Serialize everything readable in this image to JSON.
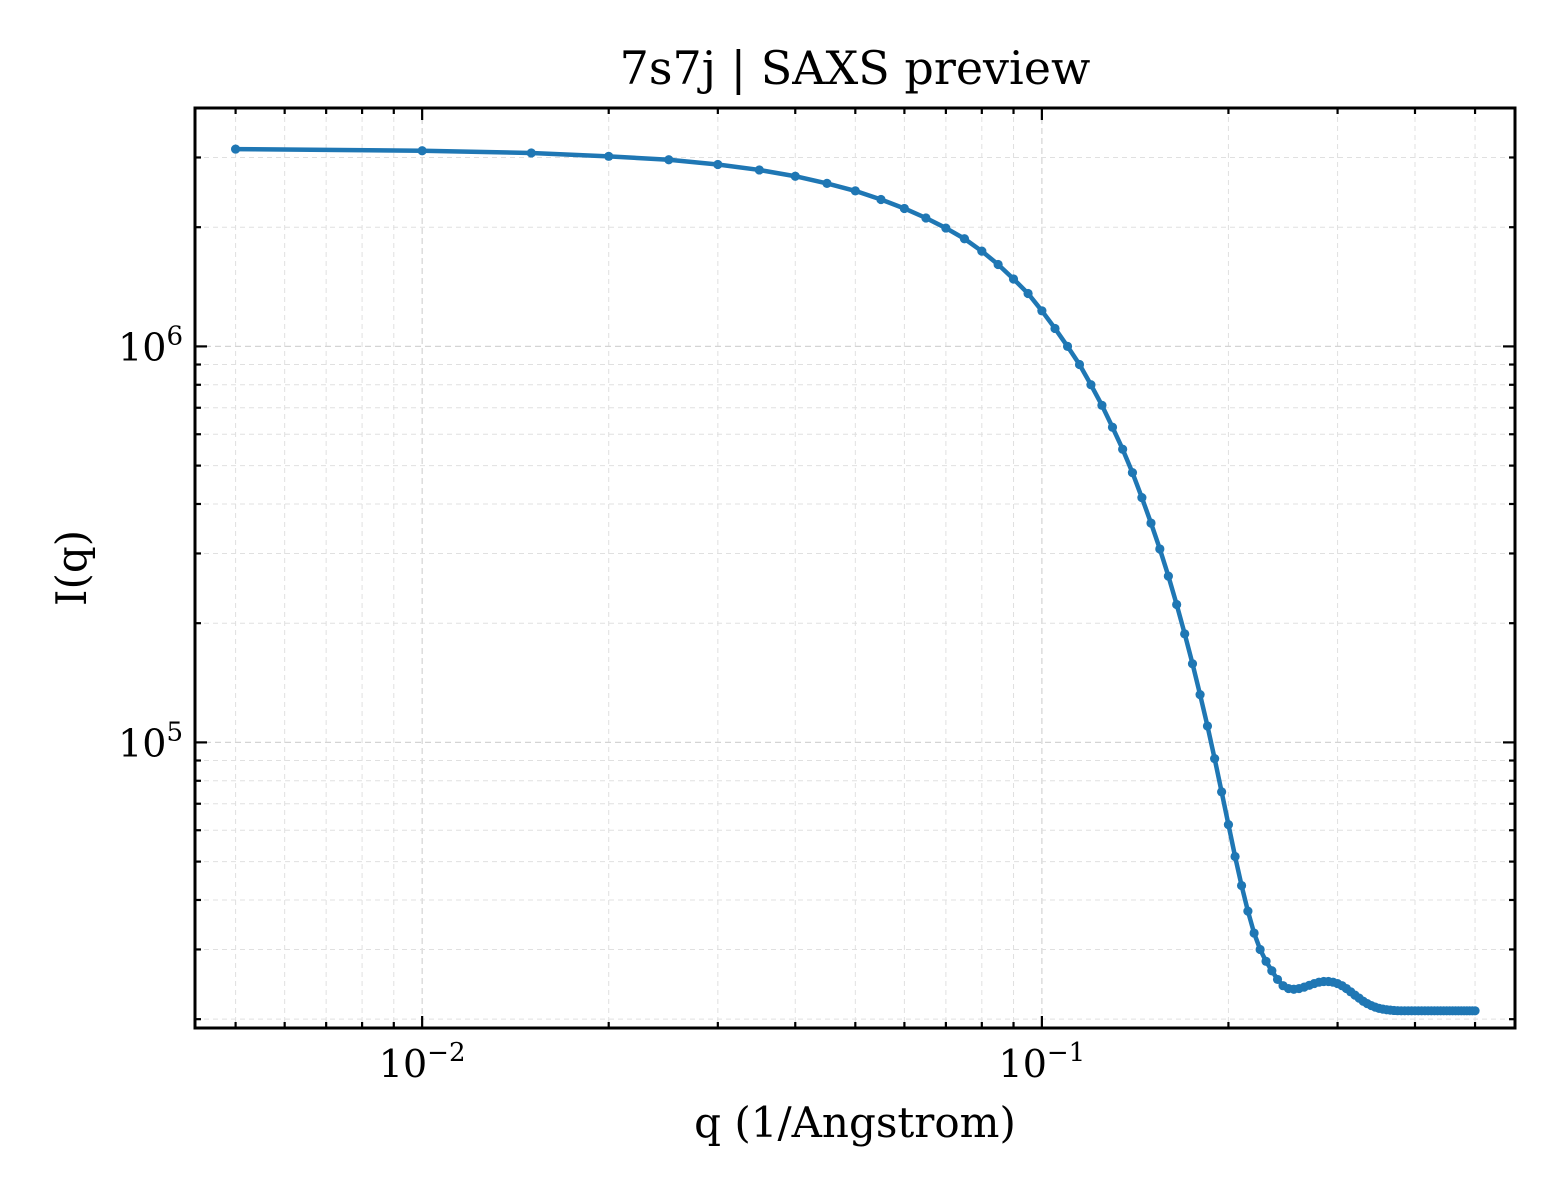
{
  "chart_data": {
    "type": "line",
    "title": "7s7j | SAXS preview",
    "xlabel": "q (1/Angstrom)",
    "ylabel": "I(q)",
    "x_scale": "log",
    "y_scale": "log",
    "xlim": [
      0.0043,
      0.58
    ],
    "ylim": [
      19000,
      4000000
    ],
    "grid": true,
    "x_ticks": [
      {
        "value": 0.01,
        "base": "10",
        "exp": "−2"
      },
      {
        "value": 0.1,
        "base": "10",
        "exp": "−1"
      }
    ],
    "y_ticks": [
      {
        "value": 100000,
        "base": "10",
        "exp": "5"
      },
      {
        "value": 1000000,
        "base": "10",
        "exp": "6"
      }
    ],
    "colors": {
      "series": "#1f77b4"
    },
    "series": [
      {
        "x": [
          0.005,
          0.01,
          0.015,
          0.02,
          0.025,
          0.03,
          0.035,
          0.04,
          0.045,
          0.05,
          0.055,
          0.06,
          0.065,
          0.07,
          0.075,
          0.08,
          0.085,
          0.09,
          0.095,
          0.1,
          0.105,
          0.11,
          0.115,
          0.12,
          0.125,
          0.13,
          0.135,
          0.14,
          0.145,
          0.15,
          0.155,
          0.16,
          0.165,
          0.17,
          0.175,
          0.18,
          0.185,
          0.19,
          0.195,
          0.2,
          0.205,
          0.21,
          0.215,
          0.22,
          0.225,
          0.23,
          0.235,
          0.24,
          0.245,
          0.25,
          0.255,
          0.26,
          0.265,
          0.27,
          0.275,
          0.28,
          0.285,
          0.29,
          0.295,
          0.3,
          0.305,
          0.31,
          0.315,
          0.32,
          0.325,
          0.33,
          0.335,
          0.34,
          0.345,
          0.35,
          0.355,
          0.36,
          0.365,
          0.37,
          0.375,
          0.38,
          0.385,
          0.39,
          0.395,
          0.4,
          0.405,
          0.41,
          0.415,
          0.42,
          0.425,
          0.43,
          0.435,
          0.44,
          0.445,
          0.45,
          0.455,
          0.46,
          0.465,
          0.47,
          0.475,
          0.48,
          0.485,
          0.49,
          0.495,
          0.5
        ],
        "y": [
          3150000,
          3120000,
          3080000,
          3020000,
          2960000,
          2880000,
          2790000,
          2690000,
          2580000,
          2470000,
          2350000,
          2230000,
          2110000,
          1990000,
          1870000,
          1740000,
          1610000,
          1480000,
          1360000,
          1230000,
          1110000,
          1000000,
          900000,
          800000,
          710000,
          625000,
          550000,
          480000,
          415000,
          358000,
          308000,
          263000,
          223000,
          188000,
          158000,
          132000,
          110000,
          91000,
          75000,
          62000,
          51500,
          43500,
          37500,
          33000,
          30000,
          28000,
          26500,
          25200,
          24300,
          23900,
          23800,
          23900,
          24100,
          24350,
          24600,
          24800,
          24900,
          24900,
          24800,
          24600,
          24300,
          23900,
          23450,
          23000,
          22600,
          22200,
          21900,
          21650,
          21450,
          21300,
          21200,
          21130,
          21080,
          21040,
          21010,
          21000,
          21000,
          21000,
          21000,
          21000,
          21000,
          21000,
          21000,
          21000,
          21000,
          21000,
          21000,
          21000,
          21000,
          21000,
          21000,
          21000,
          21000,
          21000,
          21000,
          21000,
          21000,
          21000,
          21000,
          21000
        ]
      }
    ]
  }
}
